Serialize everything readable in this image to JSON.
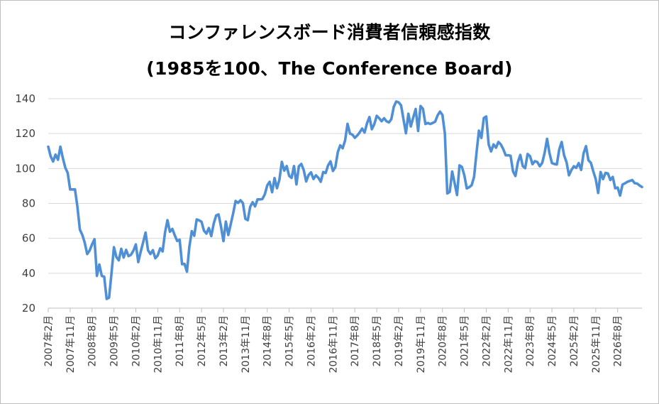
{
  "title_line1": "コンファレンスボード消費者信頼感指数",
  "title_line2": "(1985を100、The Conference Board)",
  "colors": {
    "line": "#4f8fd6",
    "grid": "#d9d9d9",
    "axis": "#bfbfbf",
    "text": "#404040"
  },
  "chart_data": {
    "type": "line",
    "title": "コンファレンスボード消費者信頼感指数 (1985を100、The Conference Board)",
    "xlabel": "",
    "ylabel": "",
    "ylim": [
      20,
      140
    ],
    "yticks": [
      20,
      40,
      60,
      80,
      100,
      120,
      140
    ],
    "grid": true,
    "legend": "none",
    "x_tick_labels": [
      "2007年2月",
      "2007年11月",
      "2008年8月",
      "2009年5月",
      "2010年2月",
      "2010年11月",
      "2011年8月",
      "2012年5月",
      "2013年2月",
      "2013年11月",
      "2014年8月",
      "2015年5月",
      "2016年2月",
      "2016年11月",
      "2017年8月",
      "2018年5月",
      "2019年2月",
      "2019年11月",
      "2020年8月",
      "2021年5月",
      "2022年2月",
      "2022年11月",
      "2023年8月",
      "2024年5月",
      "2025年2月",
      "2025年11月",
      "2026年8月"
    ],
    "x_start": "2007年2月",
    "series": [
      {
        "values": [
          112.5,
          107,
          104,
          108,
          105,
          112.5,
          106,
          100.5,
          97.5,
          88,
          88,
          88,
          78,
          65,
          62,
          57.5,
          51,
          53,
          56.5,
          59.5,
          38.5,
          45,
          38.5,
          38,
          25.3,
          26,
          40,
          54.9,
          49.3,
          47.4,
          54,
          49,
          53.4,
          49.8,
          50.6,
          52.9,
          56.5,
          46.4,
          52.3,
          57.7,
          63.3,
          53.2,
          51,
          53.2,
          48.6,
          50.2,
          54.3,
          52.5,
          63.4,
          70.4,
          63.8,
          65.4,
          61.7,
          58.5,
          59.2,
          45.2,
          45.4,
          40.9,
          55.2,
          64.1,
          61.5,
          70.8,
          70.3,
          69.5,
          64.4,
          62.7,
          65.9,
          61.3,
          68.4,
          73.1,
          73.7,
          66.7,
          58.4,
          69.6,
          61.9,
          68.1,
          74.3,
          81.4,
          80.3,
          81.8,
          80.2,
          71.2,
          70.4,
          78.1,
          80.7,
          78.3,
          82.3,
          82.3,
          82.5,
          85.2,
          90.3,
          92.4,
          86.4,
          94.5,
          88.7,
          93.6,
          103.8,
          98.8,
          101.4,
          95.8,
          94.6,
          101.4,
          90.9,
          101.3,
          102.6,
          99.1,
          92.6,
          96.3,
          97.8,
          94,
          96.1,
          94.7,
          92.4,
          98,
          97.4,
          101.8,
          104.1,
          98.6,
          100.8,
          109.4,
          113.3,
          111.6,
          116.1,
          125.6,
          120,
          119.4,
          117.6,
          118.9,
          120.7,
          122.9,
          120.6,
          125.9,
          129.5,
          122.5,
          125.4,
          130.2,
          128.8,
          127.1,
          128.8,
          127.1,
          126.4,
          128.3,
          135.3,
          138.4,
          137.9,
          136.2,
          128.1,
          120.2,
          131.4,
          124.1,
          129.2,
          134.1,
          121.5,
          135.8,
          134.2,
          125.5,
          126.1,
          125.5,
          126.1,
          126.8,
          130.4,
          132.6,
          130.7,
          120,
          85.7,
          86.6,
          98.3,
          91.7,
          84.8,
          101.8,
          100.9,
          96.1,
          88.6,
          89.3,
          90.4,
          95.2,
          109,
          121.7,
          117.5,
          128.9,
          129.8,
          113.8,
          109.8,
          113.8,
          111.9,
          115.2,
          113.8,
          111.1,
          107.6,
          107.6,
          107.3,
          98.4,
          95.7,
          103.6,
          107.8,
          101.4,
          100.2,
          108.3,
          107.1,
          102.5,
          104.2,
          103.7,
          101.3,
          103.2,
          109,
          117,
          108.7,
          103.1,
          102.6,
          102.3,
          110.9,
          115.2,
          107.5,
          103.6,
          96.1,
          99.1,
          101.3,
          100.4,
          103.1,
          99.2,
          108.7,
          112.8,
          104.7,
          103.3,
          98.3,
          93.9,
          86,
          98,
          93.9,
          97.5,
          97.2,
          93.4,
          95.2,
          88.7,
          89.1,
          84.5,
          90.8,
          91.5,
          92.4,
          92.9,
          93.4,
          91.6,
          91.4,
          90.3,
          89.4
        ]
      }
    ]
  }
}
